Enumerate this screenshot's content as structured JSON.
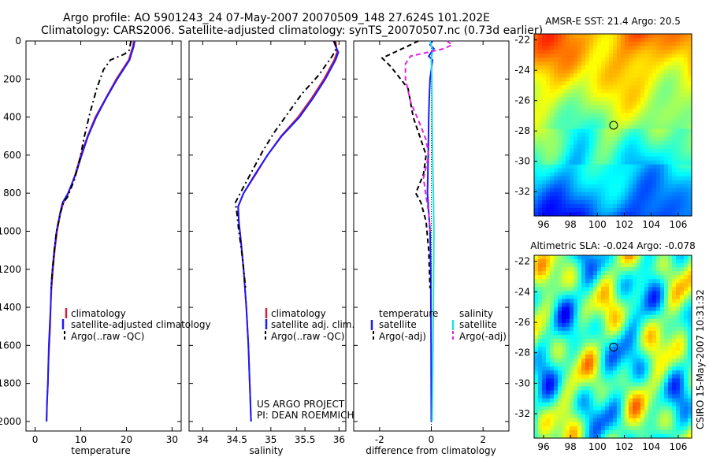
{
  "header": {
    "line1": "Argo profile: AO 5901243_24 07-May-2007 20070509_148 27.624S 101.202E",
    "line2": "Climatology: CARS2006. Satellite-adjusted climatology: synTS_20070507.nc (0.73d earlier)"
  },
  "side_label": "CSIRO 15-May-2007 10:31:32",
  "chart_data": [
    {
      "id": "temperature",
      "type": "line",
      "xlabel": "temperature",
      "xlim": [
        -2,
        32
      ],
      "ylim": [
        0,
        2050
      ],
      "y_reversed": true,
      "xticks": [
        0,
        10,
        20,
        30
      ],
      "yticks": [
        0,
        200,
        400,
        600,
        800,
        1000,
        1200,
        1400,
        1600,
        1800,
        2000
      ],
      "series": [
        {
          "name": "climatology",
          "color": "#d0203a",
          "dash": "",
          "points": [
            [
              21.6,
              0
            ],
            [
              21.4,
              30
            ],
            [
              21.0,
              60
            ],
            [
              20.5,
              100
            ],
            [
              17.8,
              200
            ],
            [
              15.5,
              300
            ],
            [
              13.2,
              400
            ],
            [
              11.5,
              500
            ],
            [
              10.0,
              600
            ],
            [
              8.8,
              700
            ],
            [
              7.3,
              800
            ],
            [
              6.2,
              850
            ],
            [
              5.6,
              900
            ],
            [
              4.8,
              1000
            ],
            [
              4.3,
              1100
            ],
            [
              3.9,
              1200
            ],
            [
              3.6,
              1300
            ],
            [
              3.4,
              1400
            ],
            [
              3.3,
              1500
            ],
            [
              3.1,
              1600
            ],
            [
              2.9,
              1700
            ],
            [
              2.8,
              1800
            ],
            [
              2.6,
              1900
            ],
            [
              2.5,
              2000
            ]
          ]
        },
        {
          "name": "satellite-adjusted climatology",
          "color": "#1a1aff",
          "dash": "",
          "points": [
            [
              21.8,
              0
            ],
            [
              21.6,
              30
            ],
            [
              21.2,
              60
            ],
            [
              20.7,
              100
            ],
            [
              18.0,
              200
            ],
            [
              15.6,
              300
            ],
            [
              13.4,
              400
            ],
            [
              11.6,
              500
            ],
            [
              10.2,
              600
            ],
            [
              8.9,
              700
            ],
            [
              7.2,
              800
            ],
            [
              6.0,
              850
            ],
            [
              5.5,
              900
            ],
            [
              4.7,
              1000
            ],
            [
              4.2,
              1100
            ],
            [
              3.8,
              1200
            ],
            [
              3.5,
              1300
            ],
            [
              3.4,
              1400
            ],
            [
              3.2,
              1500
            ],
            [
              3.0,
              1600
            ],
            [
              2.9,
              1700
            ],
            [
              2.8,
              1800
            ],
            [
              2.6,
              1900
            ],
            [
              2.5,
              2000
            ]
          ]
        },
        {
          "name": "Argo(..raw -QC)",
          "color": "#000000",
          "dash": "7,4,2,4",
          "points": [
            [
              21.0,
              0
            ],
            [
              20.6,
              50
            ],
            [
              19.5,
              70
            ],
            [
              18.5,
              80
            ],
            [
              16.5,
              100
            ],
            [
              15.0,
              150
            ],
            [
              13.5,
              250
            ],
            [
              12.0,
              380
            ],
            [
              10.8,
              500
            ],
            [
              9.8,
              620
            ],
            [
              8.6,
              730
            ],
            [
              7.1,
              820
            ],
            [
              6.2,
              850
            ],
            [
              5.6,
              900
            ],
            [
              4.7,
              1000
            ],
            [
              4.2,
              1100
            ],
            [
              3.8,
              1200
            ],
            [
              3.5,
              1300
            ]
          ]
        }
      ],
      "legend_labels": [
        "climatology",
        "satellite-adjusted climatology",
        "Argo(..raw -QC)"
      ]
    },
    {
      "id": "salinity",
      "type": "line",
      "xlabel": "salinity",
      "xlim": [
        33.8,
        36.1
      ],
      "ylim": [
        0,
        2050
      ],
      "y_reversed": true,
      "xticks": [
        34,
        34.5,
        35,
        35.5,
        36
      ],
      "series": [
        {
          "name": "climatology",
          "color": "#d0203a",
          "dash": "",
          "points": [
            [
              35.95,
              0
            ],
            [
              35.97,
              60
            ],
            [
              35.93,
              100
            ],
            [
              35.78,
              200
            ],
            [
              35.6,
              300
            ],
            [
              35.4,
              400
            ],
            [
              35.15,
              500
            ],
            [
              34.95,
              600
            ],
            [
              34.78,
              700
            ],
            [
              34.6,
              800
            ],
            [
              34.52,
              870
            ],
            [
              34.53,
              950
            ],
            [
              34.56,
              1050
            ],
            [
              34.6,
              1200
            ],
            [
              34.64,
              1400
            ],
            [
              34.67,
              1600
            ],
            [
              34.69,
              1800
            ],
            [
              34.71,
              2000
            ]
          ]
        },
        {
          "name": "satellite adj. clim.",
          "color": "#1a1aff",
          "dash": "",
          "points": [
            [
              35.92,
              0
            ],
            [
              35.99,
              60
            ],
            [
              35.95,
              100
            ],
            [
              35.8,
              200
            ],
            [
              35.62,
              300
            ],
            [
              35.42,
              400
            ],
            [
              35.16,
              500
            ],
            [
              34.95,
              600
            ],
            [
              34.77,
              700
            ],
            [
              34.6,
              800
            ],
            [
              34.52,
              870
            ],
            [
              34.53,
              950
            ],
            [
              34.56,
              1050
            ],
            [
              34.6,
              1200
            ],
            [
              34.64,
              1400
            ],
            [
              34.67,
              1600
            ],
            [
              34.69,
              1800
            ],
            [
              34.71,
              2000
            ]
          ]
        },
        {
          "name": "Argo(..raw -QC)",
          "color": "#000000",
          "dash": "7,4,2,4",
          "points": [
            [
              35.93,
              0
            ],
            [
              35.96,
              40
            ],
            [
              35.9,
              80
            ],
            [
              35.7,
              180
            ],
            [
              35.45,
              280
            ],
            [
              35.25,
              380
            ],
            [
              35.05,
              480
            ],
            [
              34.88,
              580
            ],
            [
              34.7,
              700
            ],
            [
              34.55,
              800
            ],
            [
              34.48,
              850
            ],
            [
              34.5,
              900
            ],
            [
              34.53,
              1000
            ],
            [
              34.57,
              1100
            ],
            [
              34.6,
              1200
            ],
            [
              34.63,
              1300
            ]
          ]
        }
      ],
      "legend_labels": [
        "climatology",
        "satellite adj. clim.",
        "Argo(..raw -QC)"
      ],
      "annotation": [
        "US ARGO PROJECT",
        "PI: DEAN ROEMMICH"
      ]
    },
    {
      "id": "difference",
      "type": "line",
      "xlabel": "difference from climatology",
      "xlim": [
        -3.0,
        3.0
      ],
      "ylim": [
        0,
        2050
      ],
      "y_reversed": true,
      "xticks": [
        -2,
        0,
        2
      ],
      "series": [
        {
          "name": "temperature satellite",
          "color": "#1a1aff",
          "dash": "",
          "points": [
            [
              0.05,
              0
            ],
            [
              -0.05,
              20
            ],
            [
              0.1,
              40
            ],
            [
              0.0,
              60
            ],
            [
              -0.1,
              80
            ],
            [
              0.05,
              100
            ],
            [
              0.0,
              150
            ],
            [
              -0.05,
              200
            ],
            [
              -0.08,
              300
            ],
            [
              -0.1,
              400
            ],
            [
              -0.12,
              600
            ],
            [
              -0.15,
              800
            ],
            [
              -0.1,
              900
            ],
            [
              -0.05,
              1000
            ],
            [
              -0.02,
              1200
            ],
            [
              -0.01,
              1600
            ],
            [
              0.0,
              2000
            ]
          ]
        },
        {
          "name": "temperature Argo(-adj)",
          "color": "#000000",
          "dash": "6,4",
          "points": [
            [
              -0.5,
              0
            ],
            [
              -0.8,
              20
            ],
            [
              -1.9,
              90
            ],
            [
              -1.6,
              130
            ],
            [
              -1.3,
              180
            ],
            [
              -0.9,
              250
            ],
            [
              -0.7,
              400
            ],
            [
              -0.4,
              520
            ],
            [
              -0.2,
              600
            ],
            [
              -0.3,
              700
            ],
            [
              -0.6,
              800
            ],
            [
              -0.4,
              850
            ],
            [
              -0.2,
              950
            ],
            [
              -0.1,
              1100
            ],
            [
              -0.05,
              1300
            ]
          ]
        },
        {
          "name": "salinity satellite",
          "color": "#20e0e0",
          "dash": "",
          "points": [
            [
              -0.05,
              0
            ],
            [
              0.05,
              50
            ],
            [
              0.0,
              100
            ],
            [
              0.02,
              200
            ],
            [
              0.03,
              400
            ],
            [
              0.05,
              600
            ],
            [
              0.08,
              800
            ],
            [
              0.1,
              1000
            ],
            [
              0.08,
              1400
            ],
            [
              0.05,
              1800
            ],
            [
              0.03,
              2000
            ]
          ]
        },
        {
          "name": "salinity Argo(-adj)",
          "color": "#e020e0",
          "dash": "6,4",
          "points": [
            [
              0.6,
              0
            ],
            [
              0.8,
              20
            ],
            [
              0.5,
              40
            ],
            [
              -0.8,
              80
            ],
            [
              -1.0,
              120
            ],
            [
              -1.0,
              200
            ],
            [
              -0.8,
              320
            ],
            [
              -0.4,
              450
            ],
            [
              -0.2,
              520
            ],
            [
              -0.1,
              600
            ],
            [
              -0.3,
              720
            ],
            [
              -0.2,
              820
            ],
            [
              -0.1,
              900
            ],
            [
              -0.05,
              1000
            ]
          ]
        }
      ],
      "legend": {
        "temperature_header": "temperature",
        "salinity_header": "salinity",
        "temperature_labels": [
          "satellite",
          "Argo(-adj)"
        ],
        "salinity_labels": [
          "satellite",
          "Argo(-adj)"
        ]
      }
    },
    {
      "id": "sst_map",
      "type": "heatmap",
      "title": "AMSR-E SST: 21.4 Argo: 20.5",
      "xlim": [
        95.3,
        107.0
      ],
      "ylim": [
        -33.6,
        -21.6
      ],
      "xticks": [
        96,
        98,
        100,
        102,
        104,
        106
      ],
      "yticks": [
        -22,
        -24,
        -26,
        -28,
        -30,
        -32
      ],
      "marker": {
        "lon": 101.202,
        "lat": -27.624
      },
      "colormap": "jet"
    },
    {
      "id": "sla_map",
      "type": "heatmap",
      "title": "Altimetric SLA: -0.024 Argo: -0.078",
      "xlim": [
        95.3,
        107.0
      ],
      "ylim": [
        -33.6,
        -21.6
      ],
      "xticks": [
        96,
        98,
        100,
        102,
        104,
        106
      ],
      "yticks": [
        -22,
        -24,
        -26,
        -28,
        -30,
        -32
      ],
      "marker": {
        "lon": 101.202,
        "lat": -27.624
      },
      "colormap": "jet"
    }
  ]
}
